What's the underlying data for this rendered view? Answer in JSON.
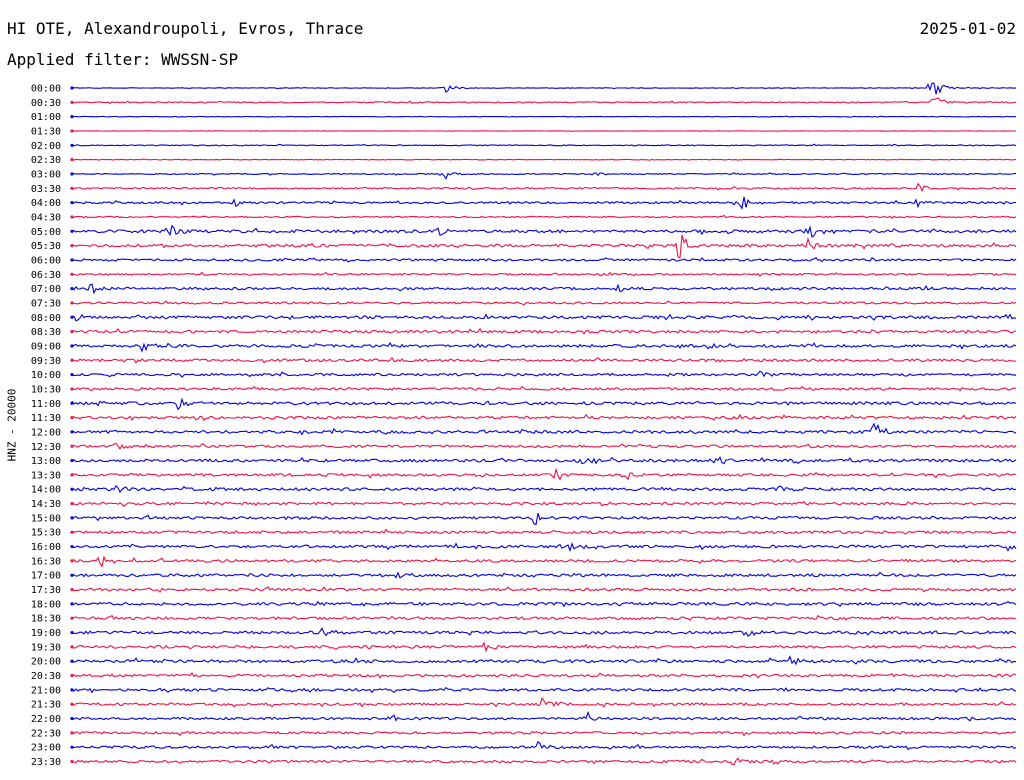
{
  "header": {
    "station": "HI OTE, Alexandroupoli, Evros, Thrace",
    "date": "2025-01-02",
    "filter": "Applied filter: WWSSN-SP"
  },
  "channel_label": "HNZ - 20000",
  "colors": {
    "trace_a": "#0000dd",
    "trace_b": "#ee1144",
    "text": "#000000"
  },
  "chart_data": {
    "type": "line",
    "subtype": "helicorder",
    "ylabel": "HNZ - 20000",
    "row_interval_minutes": 30,
    "tick_labels": [
      "00:00",
      "00:30",
      "01:00",
      "01:30",
      "02:00",
      "02:30",
      "03:00",
      "03:30",
      "04:00",
      "04:30",
      "05:00",
      "05:30",
      "06:00",
      "06:30",
      "07:00",
      "07:30",
      "08:00",
      "08:30",
      "09:00",
      "09:30",
      "10:00",
      "10:30",
      "11:00",
      "11:30",
      "12:00",
      "12:30",
      "13:00",
      "13:30",
      "14:00",
      "14:30",
      "15:00",
      "15:30",
      "16:00",
      "16:30",
      "17:00",
      "17:30",
      "18:00",
      "18:30",
      "19:00",
      "19:30",
      "20:00",
      "20:30",
      "21:00",
      "21:30",
      "22:00",
      "22:30",
      "23:00",
      "23:30"
    ],
    "row_noise_level": [
      0.3,
      0.6,
      0.3,
      0.2,
      0.5,
      0.3,
      0.5,
      0.8,
      1.0,
      0.7,
      1.4,
      1.4,
      1.1,
      0.9,
      1.2,
      1.0,
      1.4,
      1.3,
      1.4,
      1.3,
      1.2,
      1.2,
      1.4,
      1.3,
      1.4,
      1.2,
      1.4,
      1.3,
      1.4,
      1.2,
      1.3,
      1.3,
      1.4,
      1.3,
      1.3,
      1.3,
      1.4,
      1.3,
      1.4,
      1.3,
      1.4,
      1.2,
      1.3,
      1.2,
      1.2,
      1.2,
      1.2,
      1.2
    ],
    "events": [
      {
        "row": 0,
        "minute": 11.9,
        "amplitude": 6
      },
      {
        "row": 0,
        "minute": 27.3,
        "amplitude": 14
      },
      {
        "row": 1,
        "minute": 27.4,
        "amplitude": 8
      },
      {
        "row": 6,
        "minute": 11.8,
        "amplitude": 8
      },
      {
        "row": 6,
        "minute": 16.6,
        "amplitude": 5
      },
      {
        "row": 7,
        "minute": 26.9,
        "amplitude": 6
      },
      {
        "row": 8,
        "minute": 21.3,
        "amplitude": 10
      },
      {
        "row": 8,
        "minute": 26.8,
        "amplitude": 7
      },
      {
        "row": 8,
        "minute": 5.2,
        "amplitude": 5
      },
      {
        "row": 10,
        "minute": 3.2,
        "amplitude": 7
      },
      {
        "row": 10,
        "minute": 11.6,
        "amplitude": 6
      },
      {
        "row": 10,
        "minute": 23.4,
        "amplitude": 8
      },
      {
        "row": 11,
        "minute": 19.3,
        "amplitude": 18
      },
      {
        "row": 11,
        "minute": 23.3,
        "amplitude": 10
      },
      {
        "row": 12,
        "minute": 23.7,
        "amplitude": 5
      },
      {
        "row": 14,
        "minute": 0.6,
        "amplitude": 5
      },
      {
        "row": 14,
        "minute": 17.4,
        "amplitude": 5
      },
      {
        "row": 16,
        "minute": 0.2,
        "amplitude": 5
      },
      {
        "row": 16,
        "minute": 18.9,
        "amplitude": 6
      },
      {
        "row": 16,
        "minute": 29.7,
        "amplitude": 5
      },
      {
        "row": 18,
        "minute": 2.2,
        "amplitude": 6
      },
      {
        "row": 18,
        "minute": 20.3,
        "amplitude": 5
      },
      {
        "row": 20,
        "minute": 21.9,
        "amplitude": 5
      },
      {
        "row": 22,
        "minute": 0.7,
        "amplitude": 5
      },
      {
        "row": 22,
        "minute": 3.4,
        "amplitude": 7
      },
      {
        "row": 24,
        "minute": 25.5,
        "amplitude": 9
      },
      {
        "row": 25,
        "minute": 1.4,
        "amplitude": 5
      },
      {
        "row": 26,
        "minute": 16.1,
        "amplitude": 6
      },
      {
        "row": 26,
        "minute": 20.5,
        "amplitude": 7
      },
      {
        "row": 27,
        "minute": 15.4,
        "amplitude": 8
      },
      {
        "row": 27,
        "minute": 17.6,
        "amplitude": 7
      },
      {
        "row": 28,
        "minute": 1.4,
        "amplitude": 5
      },
      {
        "row": 28,
        "minute": 22.5,
        "amplitude": 7
      },
      {
        "row": 30,
        "minute": 14.7,
        "amplitude": 8
      },
      {
        "row": 32,
        "minute": 15.6,
        "amplitude": 12
      },
      {
        "row": 32,
        "minute": 29.8,
        "amplitude": 5
      },
      {
        "row": 33,
        "minute": 0.9,
        "amplitude": 8
      },
      {
        "row": 34,
        "minute": 10.3,
        "amplitude": 5
      },
      {
        "row": 38,
        "minute": 8.0,
        "amplitude": 8
      },
      {
        "row": 38,
        "minute": 21.4,
        "amplitude": 8
      },
      {
        "row": 39,
        "minute": 13.1,
        "amplitude": 7
      },
      {
        "row": 40,
        "minute": 22.9,
        "amplitude": 8
      },
      {
        "row": 43,
        "minute": 14.9,
        "amplitude": 14
      },
      {
        "row": 44,
        "minute": 16.3,
        "amplitude": 8
      },
      {
        "row": 44,
        "minute": 10.1,
        "amplitude": 5
      },
      {
        "row": 46,
        "minute": 14.8,
        "amplitude": 7
      },
      {
        "row": 47,
        "minute": 21.0,
        "amplitude": 5
      }
    ]
  }
}
